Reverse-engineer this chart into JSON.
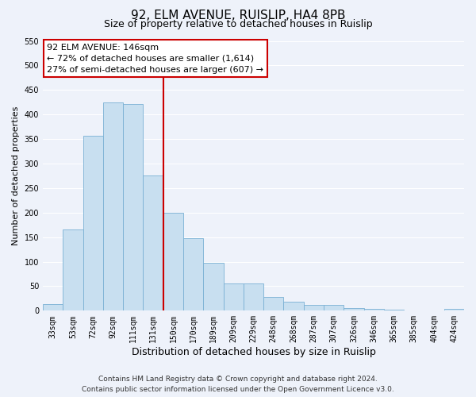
{
  "title": "92, ELM AVENUE, RUISLIP, HA4 8PB",
  "subtitle": "Size of property relative to detached houses in Ruislip",
  "xlabel": "Distribution of detached houses by size in Ruislip",
  "ylabel": "Number of detached properties",
  "categories": [
    "33sqm",
    "53sqm",
    "72sqm",
    "92sqm",
    "111sqm",
    "131sqm",
    "150sqm",
    "170sqm",
    "189sqm",
    "209sqm",
    "229sqm",
    "248sqm",
    "268sqm",
    "287sqm",
    "307sqm",
    "326sqm",
    "346sqm",
    "365sqm",
    "385sqm",
    "404sqm",
    "424sqm"
  ],
  "values": [
    13,
    165,
    357,
    425,
    422,
    275,
    200,
    148,
    97,
    55,
    55,
    28,
    18,
    12,
    12,
    5,
    4,
    2,
    0,
    0,
    3
  ],
  "bar_color": "#c8dff0",
  "bar_edge_color": "#7ab0d4",
  "vline_x_idx": 6,
  "vline_color": "#cc0000",
  "ylim": [
    0,
    550
  ],
  "yticks": [
    0,
    50,
    100,
    150,
    200,
    250,
    300,
    350,
    400,
    450,
    500,
    550
  ],
  "annotation_title": "92 ELM AVENUE: 146sqm",
  "annotation_line1": "← 72% of detached houses are smaller (1,614)",
  "annotation_line2": "27% of semi-detached houses are larger (607) →",
  "annotation_box_facecolor": "#ffffff",
  "annotation_box_edgecolor": "#cc0000",
  "footer1": "Contains HM Land Registry data © Crown copyright and database right 2024.",
  "footer2": "Contains public sector information licensed under the Open Government Licence v3.0.",
  "bg_color": "#eef2fa",
  "grid_color": "#ffffff",
  "title_fontsize": 11,
  "subtitle_fontsize": 9,
  "xlabel_fontsize": 9,
  "ylabel_fontsize": 8,
  "tick_fontsize": 7,
  "ann_fontsize": 8,
  "footer_fontsize": 6.5
}
